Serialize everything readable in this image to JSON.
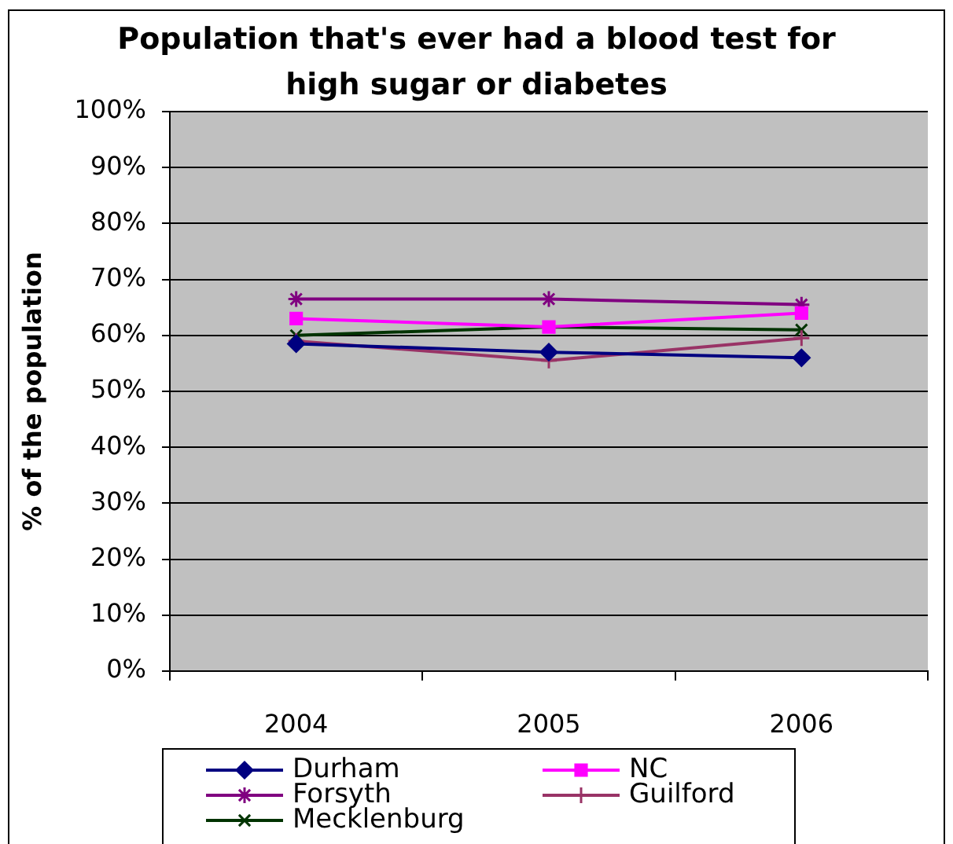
{
  "chart_data": {
    "type": "line",
    "title": "Population that's ever had a blood test for high sugar or diabetes",
    "ylabel": "% of the population",
    "categories": [
      "2004",
      "2005",
      "2006"
    ],
    "series": [
      {
        "name": "Durham",
        "color": "#000080",
        "marker": "diamond",
        "values": [
          58.5,
          57,
          56
        ]
      },
      {
        "name": "NC",
        "color": "#ff00ff",
        "marker": "square",
        "values": [
          63,
          61.5,
          64
        ]
      },
      {
        "name": "Forsyth",
        "color": "#800080",
        "marker": "cross",
        "values": [
          66.5,
          66.5,
          65.5
        ]
      },
      {
        "name": "Guilford",
        "color": "#993366",
        "marker": "cross",
        "values": [
          59,
          55.5,
          59.5
        ]
      },
      {
        "name": "Mecklenburg",
        "color": "#003300",
        "marker": "cross",
        "values": [
          60,
          61.5,
          61
        ]
      }
    ],
    "ylim": [
      0,
      100
    ],
    "yticks": [
      {
        "value": 0,
        "label": "0%"
      },
      {
        "value": 10,
        "label": "10%"
      },
      {
        "value": 20,
        "label": "20%"
      },
      {
        "value": 30,
        "label": "30%"
      },
      {
        "value": 40,
        "label": "40%"
      },
      {
        "value": 50,
        "label": "50%"
      },
      {
        "value": 60,
        "label": "60%"
      },
      {
        "value": 70,
        "label": "70%"
      },
      {
        "value": 80,
        "label": "80%"
      },
      {
        "value": 90,
        "label": "90%"
      },
      {
        "value": 100,
        "label": "100%"
      }
    ],
    "grid": "y",
    "legend": "bottom",
    "line_style": "solid"
  }
}
